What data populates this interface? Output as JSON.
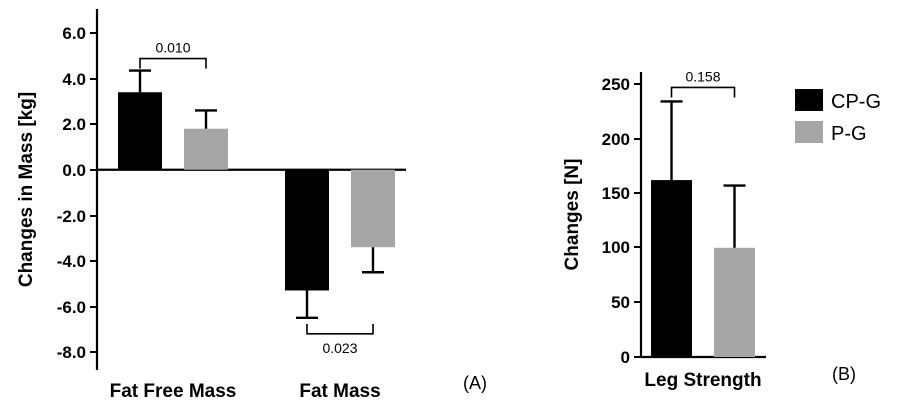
{
  "chart_data": [
    {
      "type": "bar",
      "panel_label": "(A)",
      "ylabel": "Changes in Mass [kg]",
      "ylim": [
        -9,
        7
      ],
      "yticks": [
        "6.0",
        "4.0",
        "2.0",
        "0.0",
        "-2.0",
        "-4.0",
        "-6.0",
        "-8.0"
      ],
      "categories": [
        "Fat Free Mass",
        "Fat Mass"
      ],
      "series": [
        {
          "name": "CP-G",
          "color": "#000000",
          "values": [
            3.4,
            -5.3
          ],
          "errors": [
            0.95,
            1.2
          ]
        },
        {
          "name": "P-G",
          "color": "#a6a6a6",
          "values": [
            1.8,
            -3.4
          ],
          "errors": [
            0.8,
            1.1
          ]
        }
      ],
      "comparisons": [
        {
          "category_index": 0,
          "p": "0.010",
          "position": "above"
        },
        {
          "category_index": 1,
          "p": "0.023",
          "position": "below"
        }
      ]
    },
    {
      "type": "bar",
      "panel_label": "(B)",
      "ylabel": "Changes [N]",
      "ylim": [
        0,
        250
      ],
      "yticks": [
        "250",
        "200",
        "150",
        "100",
        "50",
        "0"
      ],
      "categories": [
        "Leg Strength"
      ],
      "series": [
        {
          "name": "CP-G",
          "color": "#000000",
          "values": [
            162
          ],
          "errors": [
            72
          ]
        },
        {
          "name": "P-G",
          "color": "#a6a6a6",
          "values": [
            100
          ],
          "errors": [
            57
          ]
        }
      ],
      "comparisons": [
        {
          "category_index": 0,
          "p": "0.158",
          "position": "above"
        }
      ]
    }
  ],
  "legend": [
    {
      "label": "CP-G",
      "color": "#000000"
    },
    {
      "label": "P-G",
      "color": "#a6a6a6"
    }
  ]
}
